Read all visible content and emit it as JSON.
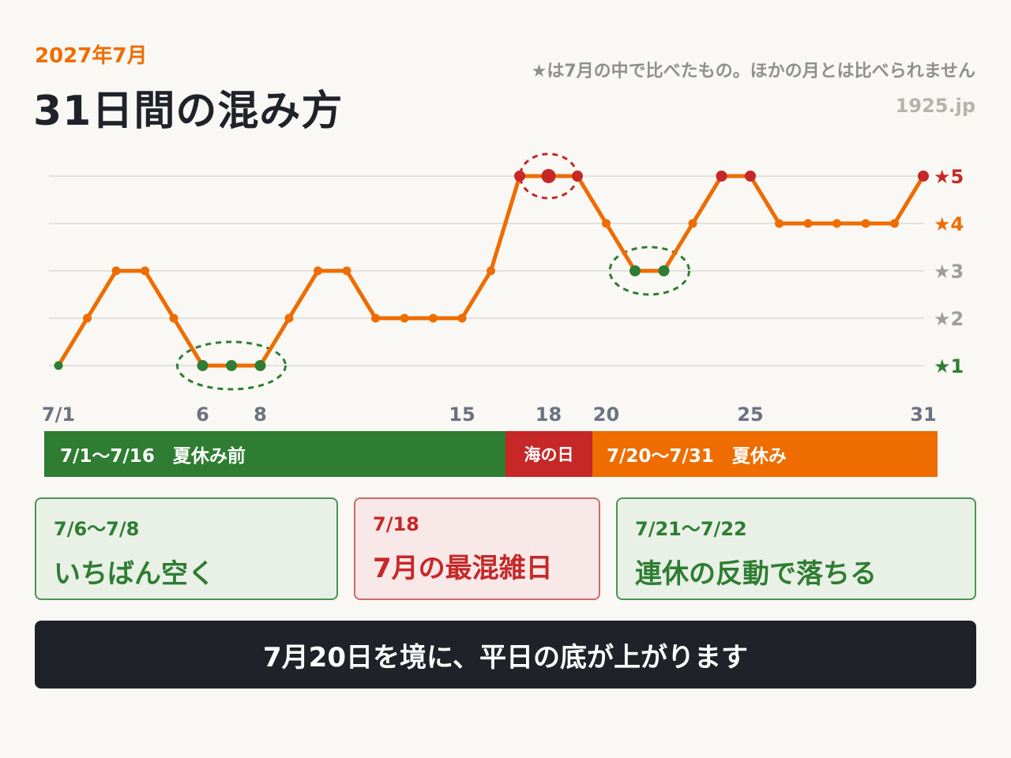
{
  "header": {
    "month": "2027年7月",
    "title": "31日間の混み方",
    "note": "★は7月の中で比べたもの。ほかの月とは比べられません",
    "site": "1925.jp"
  },
  "chart_data": {
    "type": "line",
    "x": [
      1,
      2,
      3,
      4,
      5,
      6,
      7,
      8,
      9,
      10,
      11,
      12,
      13,
      14,
      15,
      16,
      17,
      18,
      19,
      20,
      21,
      22,
      23,
      24,
      25,
      26,
      27,
      28,
      29,
      30,
      31
    ],
    "values": [
      1,
      2,
      3,
      3,
      2,
      1,
      1,
      1,
      2,
      3,
      3,
      2,
      2,
      2,
      2,
      3,
      5,
      5,
      5,
      4,
      3,
      3,
      4,
      5,
      5,
      4,
      4,
      4,
      4,
      4,
      5
    ],
    "ylim": [
      1,
      5
    ],
    "y_tick_labels": [
      "★1",
      "★2",
      "★3",
      "★4",
      "★5"
    ],
    "x_tick_values": [
      1,
      6,
      8,
      15,
      18,
      20,
      25,
      31
    ],
    "x_tick_labels": [
      "7/1",
      "6",
      "8",
      "15",
      "18",
      "20",
      "25",
      "31"
    ],
    "grid": true,
    "colors": {
      "line": "#ee6c00",
      "low": "#2f7d32",
      "peak": "#c62828",
      "normal": "#ee6c00",
      "star1": "#2f7d32",
      "star2": "#9e9e9e",
      "star3": "#9e9e9e",
      "star4": "#ee6c00",
      "star5": "#c62828"
    },
    "highlight_low_days": [
      6,
      7,
      8,
      21,
      22
    ],
    "highlight_peak_days": [
      17,
      18,
      19,
      24,
      25,
      31
    ],
    "circled_groups": [
      {
        "days": [
          6,
          8
        ],
        "color": "#2f7d32"
      },
      {
        "days": [
          18,
          18
        ],
        "color": "#c62828"
      },
      {
        "days": [
          21,
          22
        ],
        "color": "#2f7d32"
      }
    ]
  },
  "periods": [
    {
      "label": "7/1〜7/16　夏休み前",
      "color": "#2f7d32"
    },
    {
      "label": "海の日",
      "color": "#c62828"
    },
    {
      "label": "7/20〜7/31　夏休み",
      "color": "#ee6c00"
    }
  ],
  "cards": [
    {
      "date": "7/6〜7/8",
      "message": "いちばん空く"
    },
    {
      "date": "7/18",
      "message": "7月の最混雑日"
    },
    {
      "date": "7/21〜7/22",
      "message": "連休の反動で落ちる"
    }
  ],
  "conclusion": "7月20日を境に、平日の底が上がります"
}
